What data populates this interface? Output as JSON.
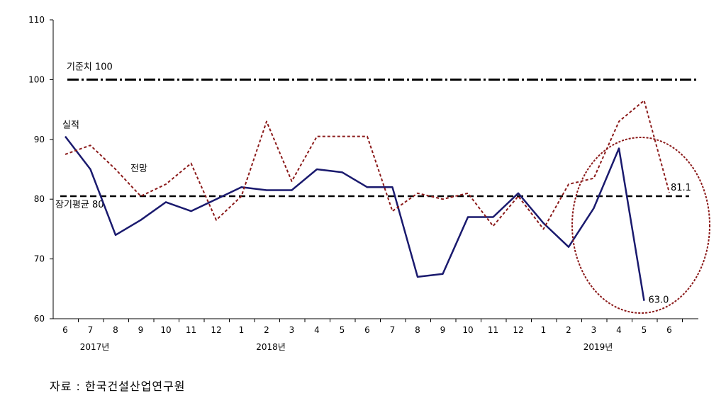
{
  "chart_data": {
    "type": "line",
    "x": [
      "6",
      "7",
      "8",
      "9",
      "10",
      "11",
      "12",
      "1",
      "2",
      "3",
      "4",
      "5",
      "6",
      "7",
      "8",
      "9",
      "10",
      "11",
      "12",
      "1",
      "2",
      "3",
      "4",
      "5",
      "6"
    ],
    "year_labels": [
      {
        "index": 1,
        "label": "2017년"
      },
      {
        "index": 8,
        "label": "2018년"
      },
      {
        "index": 21,
        "label": "2019년"
      }
    ],
    "ylim": [
      60,
      110
    ],
    "yticks": [
      60,
      70,
      80,
      90,
      100,
      110
    ],
    "series": [
      {
        "name": "실적",
        "style": "solid",
        "color": "#1a1a6e",
        "values": [
          90.5,
          85.0,
          74.0,
          76.5,
          79.5,
          78.0,
          80.0,
          82.0,
          81.5,
          81.5,
          85.0,
          84.5,
          82.0,
          82.0,
          67.0,
          67.5,
          77.0,
          77.0,
          81.0,
          76.0,
          72.0,
          78.5,
          88.5,
          63.0,
          null
        ]
      },
      {
        "name": "전망",
        "style": "dotted",
        "color": "#8b1a1a",
        "values": [
          87.5,
          89.0,
          85.0,
          80.5,
          82.5,
          86.0,
          76.5,
          80.5,
          93.0,
          83.0,
          90.5,
          90.5,
          90.5,
          78.0,
          81.0,
          80.0,
          81.0,
          75.5,
          80.5,
          75.0,
          82.5,
          83.5,
          93.0,
          96.5,
          81.1
        ]
      }
    ],
    "reference_lines": [
      {
        "label": "기준치 100",
        "value": 100,
        "style": "dash-dot"
      },
      {
        "label": "장기평균 80",
        "value": 80.5,
        "style": "dashed"
      }
    ],
    "annotations": [
      {
        "text": "81.1"
      },
      {
        "text": "63.0"
      }
    ],
    "highlight_color": "#8b1a1a"
  },
  "source": "자료 : 한국건설산업연구원"
}
